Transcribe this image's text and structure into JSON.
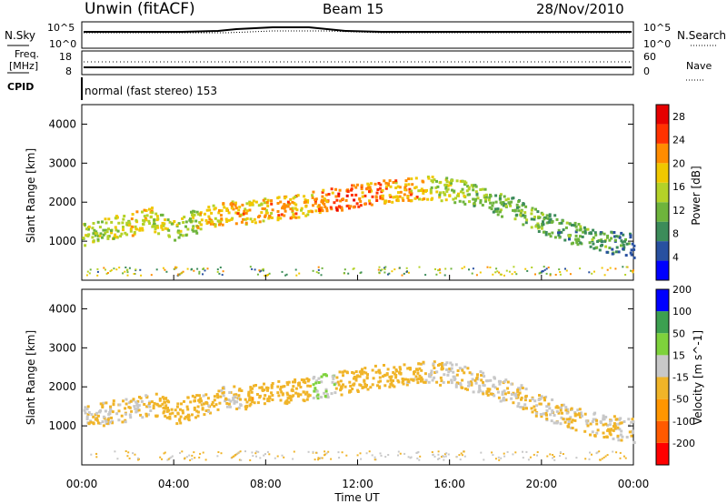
{
  "header": {
    "station": "Unwin (fitACF)",
    "beam": "Beam 15",
    "date": "28/Nov/2010"
  },
  "nsky_panel": {
    "left_label": "N.Sky",
    "right_label": "N.Search",
    "left_ticks": [
      "10^5",
      "10^0"
    ],
    "right_ticks": [
      "10^5",
      "10^0"
    ]
  },
  "freq_panel": {
    "left_label_1": "Freq.",
    "left_label_2": "[MHz]",
    "right_label": "Nave",
    "left_ticks": [
      "18",
      "8"
    ],
    "right_ticks": [
      "60",
      "0"
    ]
  },
  "cpid": {
    "label": "CPID",
    "text": "normal (fast stereo) 153"
  },
  "colors": {
    "power_scale": [
      "#0000ff",
      "#2850a0",
      "#3c8c5a",
      "#6eb43c",
      "#b4d228",
      "#f0c800",
      "#ff8c00",
      "#ff3200",
      "#e60000"
    ],
    "velocity_scale": [
      "#ff0000",
      "#ff5a00",
      "#ff9600",
      "#f0b428",
      "#c8c8c8",
      "#7ed23c",
      "#3ca050",
      "#0000ff"
    ]
  },
  "chart_data": [
    {
      "type": "heatmap",
      "name": "power",
      "ylabel": "Slant Range [km]",
      "yticks": [
        "1000",
        "2000",
        "3000",
        "4000"
      ],
      "ylim": [
        0,
        4500
      ],
      "xlim": [
        0,
        24
      ],
      "colorbar_label": "Power [dB]",
      "colorbar_ticks": [
        "4",
        "8",
        "12",
        "16",
        "20",
        "24",
        "28"
      ],
      "colorbar_range": [
        0,
        30
      ],
      "echo_band": {
        "time_h": [
          0,
          1,
          2,
          3,
          4,
          5,
          6,
          7,
          8,
          9,
          10,
          11,
          12,
          13,
          14,
          15,
          16,
          17,
          18,
          19,
          20,
          21,
          22,
          23,
          24
        ],
        "center_km": [
          1200,
          1350,
          1450,
          1600,
          1350,
          1550,
          1750,
          1750,
          1850,
          1900,
          2000,
          2100,
          2200,
          2300,
          2350,
          2400,
          2350,
          2200,
          2000,
          1800,
          1500,
          1300,
          1100,
          1000,
          900
        ],
        "power_db": [
          14,
          16,
          18,
          16,
          14,
          18,
          20,
          18,
          20,
          20,
          22,
          24,
          22,
          20,
          20,
          16,
          14,
          12,
          12,
          12,
          10,
          10,
          10,
          8,
          6
        ]
      }
    },
    {
      "type": "heatmap",
      "name": "velocity",
      "ylabel": "Slant Range [km]",
      "yticks": [
        "1000",
        "2000",
        "3000",
        "4000"
      ],
      "ylim": [
        0,
        4500
      ],
      "xlim": [
        0,
        24
      ],
      "colorbar_label": "Velocity [m s^-1]",
      "colorbar_ticks": [
        "-200",
        "-100",
        "-50",
        "-15",
        "15",
        "50",
        "100",
        "200"
      ],
      "colorbar_range": [
        -250,
        250
      ],
      "echo_band": {
        "time_h": [
          0,
          1,
          2,
          3,
          4,
          5,
          6,
          7,
          8,
          9,
          10,
          11,
          12,
          13,
          14,
          15,
          16,
          17,
          18,
          19,
          20,
          21,
          22,
          23,
          24
        ],
        "center_km": [
          1200,
          1350,
          1450,
          1600,
          1350,
          1550,
          1750,
          1750,
          1850,
          1900,
          2000,
          2100,
          2200,
          2300,
          2350,
          2400,
          2350,
          2200,
          2000,
          1800,
          1500,
          1300,
          1100,
          1000,
          900
        ],
        "velocity_ms": [
          0,
          0,
          0,
          -40,
          -40,
          -10,
          0,
          -50,
          -40,
          -30,
          60,
          -20,
          -30,
          -20,
          -10,
          0,
          0,
          0,
          0,
          0,
          0,
          0,
          0,
          0,
          0
        ]
      }
    }
  ],
  "xaxis": {
    "label": "Time UT",
    "ticks": [
      "00:00",
      "04:00",
      "08:00",
      "12:00",
      "16:00",
      "20:00",
      "00:00"
    ]
  }
}
